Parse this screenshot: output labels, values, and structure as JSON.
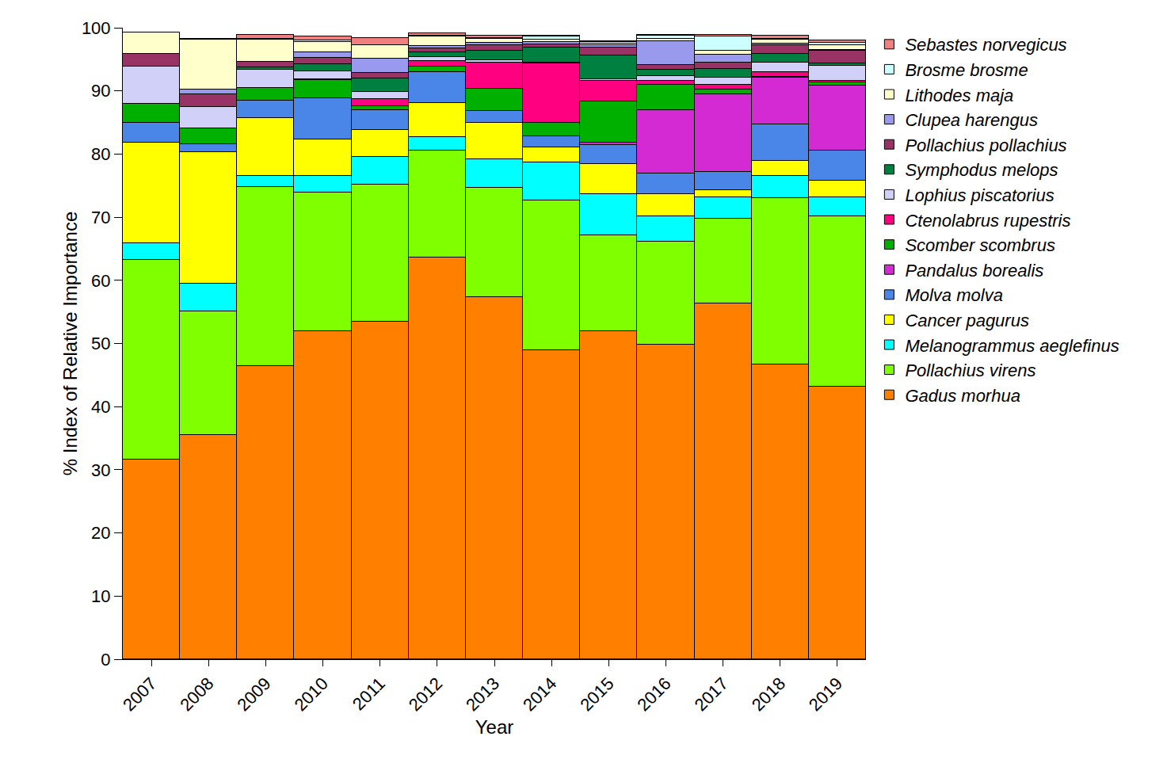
{
  "chart_data": {
    "type": "bar",
    "stacked": true,
    "grid": false,
    "legend": "top right",
    "x_label": "Year",
    "y_label": "% Index of Relative Importance",
    "categories": [
      "2007",
      "2008",
      "2009",
      "2010",
      "2011",
      "2012",
      "2013",
      "2014",
      "2015",
      "2016",
      "2017",
      "2018",
      "2019"
    ],
    "ylim": [
      0,
      100
    ],
    "yticks": [
      0,
      10,
      20,
      30,
      40,
      50,
      60,
      70,
      80,
      90,
      100
    ],
    "series": [
      {
        "name": "Gadus morhua",
        "color": "#ff8000",
        "values": [
          31.6,
          35.5,
          46.4,
          52.0,
          53.4,
          63.6,
          57.4,
          48.9,
          51.9,
          49.8,
          56.3,
          46.7,
          43.2
        ]
      },
      {
        "name": "Pollachius virens",
        "color": "#80ff00",
        "values": [
          31.7,
          19.6,
          28.4,
          21.9,
          21.7,
          16.9,
          17.2,
          23.7,
          15.2,
          16.3,
          13.5,
          26.3,
          26.9
        ]
      },
      {
        "name": "Melanogrammus aeglefinus",
        "color": "#00ffff",
        "values": [
          2.6,
          4.4,
          1.7,
          2.7,
          4.5,
          2.2,
          4.6,
          6.1,
          6.6,
          4.1,
          3.4,
          3.5,
          3.0
        ]
      },
      {
        "name": "Cancer pagurus",
        "color": "#ffff00",
        "values": [
          15.9,
          20.8,
          9.2,
          5.7,
          4.2,
          5.4,
          5.7,
          2.3,
          4.7,
          3.5,
          1.1,
          2.4,
          2.7
        ]
      },
      {
        "name": "Molva molva",
        "color": "#4a86e8",
        "values": [
          3.1,
          1.3,
          2.8,
          6.5,
          3.1,
          4.9,
          1.9,
          1.8,
          3.0,
          3.2,
          2.9,
          5.8,
          4.8
        ]
      },
      {
        "name": "Pandalus borealis",
        "color": "#d42ad4",
        "values": [
          0,
          0,
          0,
          0,
          0,
          0,
          0,
          0,
          0.4,
          10.1,
          12.2,
          7.4,
          10.3
        ]
      },
      {
        "name": "Scomber scombrus",
        "color": "#00b000",
        "values": [
          3.1,
          2.5,
          2.0,
          2.9,
          0.7,
          0.8,
          3.6,
          2.1,
          6.5,
          4.0,
          0.8,
          0.1,
          0.5
        ]
      },
      {
        "name": "Ctenolabrus rupestris",
        "color": "#ff0080",
        "values": [
          0,
          0,
          0,
          0.2,
          1.1,
          0.9,
          4.1,
          9.4,
          3.3,
          0.6,
          0.8,
          0.8,
          0.2
        ]
      },
      {
        "name": "Lophius piscatorius",
        "color": "#d0d0f8",
        "values": [
          5.8,
          3.3,
          2.9,
          1.2,
          1.1,
          0.7,
          0.4,
          0.2,
          0.3,
          0.8,
          1.1,
          1.5,
          2.4
        ]
      },
      {
        "name": "Symphodus melops",
        "color": "#008040",
        "values": [
          0,
          0,
          0.3,
          1.1,
          2.2,
          0.7,
          1.5,
          2.4,
          3.7,
          0.9,
          1.4,
          1.3,
          0.4
        ]
      },
      {
        "name": "Pollachius pollachius",
        "color": "#993366",
        "values": [
          2.1,
          2.1,
          0.9,
          1.0,
          0.9,
          0.7,
          0.9,
          0.5,
          1.3,
          0.8,
          1.0,
          1.5,
          1.9
        ]
      },
      {
        "name": "Clupea harengus",
        "color": "#9999ee",
        "values": [
          0,
          0.7,
          0,
          0.9,
          2.2,
          0.3,
          0.3,
          0.4,
          0.3,
          3.8,
          1.2,
          0.2,
          0.2
        ]
      },
      {
        "name": "Lithodes maja",
        "color": "#ffffcc",
        "values": [
          3.3,
          7.9,
          3.5,
          1.7,
          2.1,
          1.5,
          0.6,
          0.3,
          0.3,
          0.4,
          0.7,
          0.6,
          0.8
        ]
      },
      {
        "name": "Brosme brosme",
        "color": "#ccffff",
        "values": [
          0,
          0,
          0.1,
          0.2,
          0.1,
          0.2,
          0.2,
          0.5,
          0.2,
          0.4,
          2.2,
          0.2,
          0.3
        ]
      },
      {
        "name": "Sebastes norvegicus",
        "color": "#f08080",
        "values": [
          0,
          0.2,
          0.7,
          0.6,
          1.1,
          0.3,
          0.4,
          0.2,
          0.2,
          0.2,
          0.3,
          0.5,
          0.4
        ]
      }
    ]
  }
}
